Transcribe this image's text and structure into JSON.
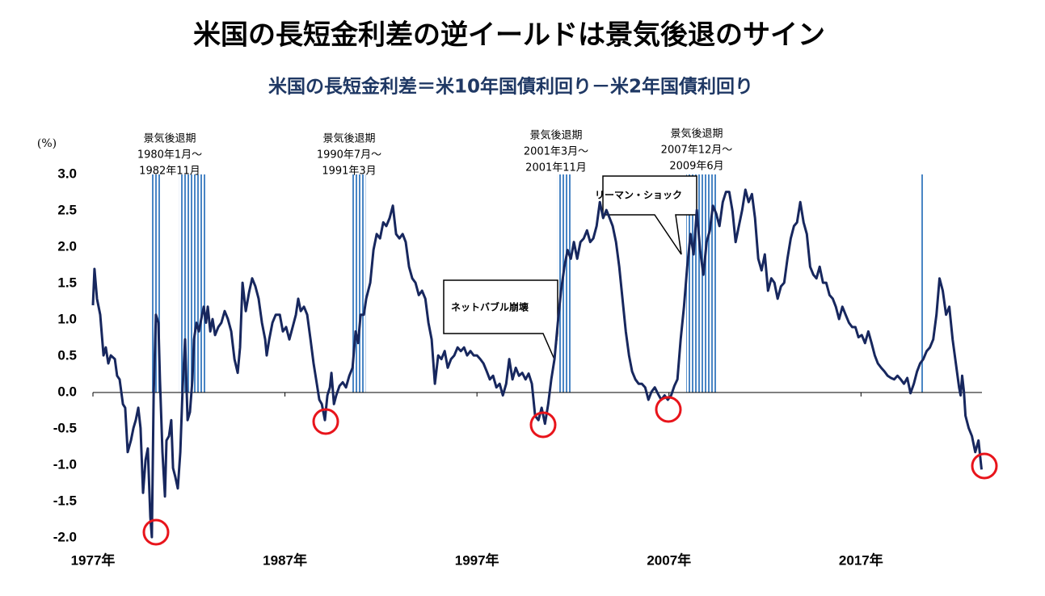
{
  "chart_data": {
    "type": "line",
    "title": "米国の長短金利差の逆イールドは景気後退のサイン",
    "subtitle": "米国の長短金利差＝米10年国債利回り－米2年国債利回り",
    "y_unit": "(%)",
    "xlim": [
      1977,
      2023.3
    ],
    "ylim": [
      -2.0,
      3.0
    ],
    "xticks": [
      {
        "value": 1977,
        "label": "1977年"
      },
      {
        "value": 1987,
        "label": "1987年"
      },
      {
        "value": 1997,
        "label": "1997年"
      },
      {
        "value": 2007,
        "label": "2007年"
      },
      {
        "value": 2017,
        "label": "2017年"
      }
    ],
    "yticks": [
      {
        "value": 3,
        "label": "3.0"
      },
      2.5,
      {
        "value": 2,
        "label": "2.0"
      },
      1.5,
      {
        "value": 1,
        "label": "1.0"
      },
      0.5,
      {
        "value": 0,
        "label": "0.0"
      },
      -0.5,
      {
        "value": -1,
        "label": "-1.0"
      },
      -1.5,
      {
        "value": -2,
        "label": "-2.0"
      }
    ],
    "series": [
      {
        "name": "米国の長短金利差",
        "color": "#17275e",
        "x": [
          1977.0,
          1977.08,
          1977.21,
          1977.38,
          1977.55,
          1977.67,
          1977.8,
          1977.93,
          1978.14,
          1978.26,
          1978.39,
          1978.56,
          1978.68,
          1978.81,
          1978.98,
          1979.11,
          1979.23,
          1979.36,
          1979.48,
          1979.61,
          1979.74,
          1979.86,
          1979.99,
          1980.07,
          1980.16,
          1980.28,
          1980.41,
          1980.49,
          1980.62,
          1980.75,
          1980.83,
          1980.96,
          1981.08,
          1981.17,
          1981.29,
          1981.42,
          1981.55,
          1981.67,
          1981.8,
          1981.93,
          1982.05,
          1982.18,
          1982.26,
          1982.39,
          1982.52,
          1982.64,
          1982.77,
          1982.89,
          1982.98,
          1983.11,
          1983.23,
          1983.36,
          1983.53,
          1983.69,
          1983.86,
          1984.03,
          1984.2,
          1984.37,
          1984.54,
          1984.66,
          1984.79,
          1984.96,
          1985.13,
          1985.29,
          1985.46,
          1985.63,
          1985.8,
          1985.97,
          1986.05,
          1986.18,
          1986.35,
          1986.52,
          1986.73,
          1986.89,
          1987.06,
          1987.23,
          1987.4,
          1987.57,
          1987.69,
          1987.82,
          1987.99,
          1988.16,
          1988.33,
          1988.49,
          1988.66,
          1988.79,
          1988.92,
          1989.08,
          1989.21,
          1989.34,
          1989.42,
          1989.55,
          1989.67,
          1989.84,
          1990.01,
          1990.18,
          1990.35,
          1990.52,
          1990.68,
          1990.81,
          1990.94,
          1991.11,
          1991.23,
          1991.44,
          1991.61,
          1991.78,
          1991.95,
          1992.12,
          1992.28,
          1992.45,
          1992.62,
          1992.79,
          1992.96,
          1993.13,
          1993.29,
          1993.46,
          1993.63,
          1993.8,
          1993.97,
          1994.14,
          1994.31,
          1994.47,
          1994.64,
          1994.81,
          1994.98,
          1995.15,
          1995.32,
          1995.48,
          1995.65,
          1995.82,
          1995.99,
          1996.16,
          1996.33,
          1996.49,
          1996.66,
          1996.83,
          1997.0,
          1997.17,
          1997.34,
          1997.51,
          1997.67,
          1997.84,
          1998.01,
          1998.18,
          1998.35,
          1998.52,
          1998.68,
          1998.85,
          1999.02,
          1999.19,
          1999.36,
          1999.53,
          1999.69,
          1999.86,
          2000.03,
          2000.2,
          2000.37,
          2000.54,
          2000.71,
          2000.87,
          2001.04,
          2001.21,
          2001.38,
          2001.55,
          2001.72,
          2001.89,
          2002.05,
          2002.22,
          2002.39,
          2002.56,
          2002.73,
          2002.9,
          2003.06,
          2003.23,
          2003.4,
          2003.57,
          2003.74,
          2003.91,
          2004.07,
          2004.24,
          2004.41,
          2004.58,
          2004.75,
          2004.92,
          2005.08,
          2005.25,
          2005.42,
          2005.59,
          2005.76,
          2005.93,
          2006.09,
          2006.26,
          2006.43,
          2006.6,
          2006.77,
          2006.94,
          2007.11,
          2007.28,
          2007.44,
          2007.61,
          2007.78,
          2007.95,
          2008.12,
          2008.28,
          2008.45,
          2008.62,
          2008.79,
          2008.96,
          2009.13,
          2009.29,
          2009.46,
          2009.63,
          2009.8,
          2009.97,
          2010.14,
          2010.31,
          2010.47,
          2010.64,
          2010.81,
          2010.98,
          2011.15,
          2011.32,
          2011.48,
          2011.65,
          2011.82,
          2011.99,
          2012.16,
          2012.33,
          2012.49,
          2012.66,
          2012.83,
          2013.0,
          2013.17,
          2013.34,
          2013.51,
          2013.67,
          2013.84,
          2014.01,
          2014.18,
          2014.35,
          2014.52,
          2014.68,
          2014.85,
          2015.02,
          2015.19,
          2015.36,
          2015.53,
          2015.69,
          2015.86,
          2016.03,
          2016.2,
          2016.37,
          2016.54,
          2016.71,
          2016.87,
          2017.04,
          2017.21,
          2017.38,
          2017.55,
          2017.72,
          2017.88,
          2018.05,
          2018.22,
          2018.39,
          2018.56,
          2018.73,
          2018.9,
          2019.07,
          2019.24,
          2019.41,
          2019.58,
          2019.75,
          2019.92,
          2020.08,
          2020.25,
          2020.42,
          2020.59,
          2020.76,
          2020.93,
          2021.09,
          2021.26,
          2021.43,
          2021.6,
          2021.77,
          2021.94,
          2022.11,
          2022.19,
          2022.27,
          2022.36,
          2022.44,
          2022.61,
          2022.78,
          2022.95,
          2023.12,
          2023.28
        ],
        "values": [
          1.2,
          1.7,
          1.29,
          1.07,
          0.51,
          0.62,
          0.4,
          0.51,
          0.46,
          0.23,
          0.18,
          -0.16,
          -0.21,
          -0.82,
          -0.66,
          -0.49,
          -0.38,
          -0.21,
          -0.49,
          -1.38,
          -0.93,
          -0.77,
          -1.71,
          -1.99,
          -0.04,
          1.07,
          0.96,
          0.18,
          -0.82,
          -1.43,
          -0.66,
          -0.6,
          -0.38,
          -1.04,
          -1.16,
          -1.32,
          -0.82,
          0.07,
          0.73,
          -0.38,
          -0.27,
          0.18,
          0.73,
          0.96,
          0.84,
          1.01,
          1.18,
          0.96,
          1.18,
          0.84,
          1.01,
          0.79,
          0.9,
          0.96,
          1.12,
          1.01,
          0.84,
          0.46,
          0.27,
          0.62,
          1.51,
          1.12,
          1.38,
          1.57,
          1.46,
          1.29,
          0.96,
          0.73,
          0.51,
          0.73,
          0.96,
          1.07,
          1.07,
          0.84,
          0.9,
          0.73,
          0.9,
          1.07,
          1.29,
          1.12,
          1.18,
          1.07,
          0.73,
          0.4,
          0.12,
          -0.1,
          -0.16,
          -0.38,
          -0.04,
          0.07,
          0.27,
          -0.16,
          -0.04,
          0.09,
          0.14,
          0.07,
          0.23,
          0.34,
          0.84,
          0.68,
          1.07,
          1.07,
          1.29,
          1.51,
          1.96,
          2.18,
          2.12,
          2.34,
          2.29,
          2.4,
          2.57,
          2.18,
          2.12,
          2.18,
          2.07,
          1.73,
          1.57,
          1.51,
          1.34,
          1.4,
          1.29,
          0.96,
          0.73,
          0.12,
          0.51,
          0.46,
          0.57,
          0.34,
          0.46,
          0.51,
          0.62,
          0.57,
          0.62,
          0.51,
          0.57,
          0.51,
          0.51,
          0.46,
          0.4,
          0.29,
          0.18,
          0.23,
          0.07,
          0.12,
          -0.04,
          0.12,
          0.46,
          0.18,
          0.34,
          0.23,
          0.27,
          0.18,
          0.26,
          0.12,
          -0.32,
          -0.38,
          -0.21,
          -0.43,
          -0.16,
          0.18,
          0.46,
          0.96,
          1.4,
          1.73,
          1.96,
          1.84,
          2.07,
          1.84,
          2.07,
          2.12,
          2.23,
          2.07,
          2.12,
          2.29,
          2.62,
          2.4,
          2.51,
          2.4,
          2.29,
          2.07,
          1.73,
          1.29,
          0.84,
          0.51,
          0.29,
          0.18,
          0.12,
          0.12,
          0.07,
          -0.1,
          0.01,
          0.07,
          -0.02,
          -0.1,
          -0.04,
          -0.1,
          -0.04,
          0.09,
          0.18,
          0.73,
          1.18,
          1.73,
          2.18,
          1.9,
          2.51,
          1.96,
          1.62,
          2.07,
          2.23,
          2.57,
          2.46,
          2.29,
          2.62,
          2.76,
          2.76,
          2.49,
          2.07,
          2.29,
          2.51,
          2.79,
          2.62,
          2.73,
          2.4,
          1.84,
          1.68,
          1.9,
          1.4,
          1.57,
          1.51,
          1.29,
          1.46,
          1.51,
          1.84,
          2.12,
          2.29,
          2.34,
          2.62,
          2.34,
          2.18,
          1.73,
          1.62,
          1.57,
          1.73,
          1.51,
          1.51,
          1.34,
          1.29,
          1.18,
          1.01,
          1.18,
          1.07,
          0.96,
          0.9,
          0.9,
          0.76,
          0.79,
          0.68,
          0.84,
          0.68,
          0.51,
          0.4,
          0.34,
          0.29,
          0.23,
          0.2,
          0.18,
          0.23,
          0.18,
          0.12,
          0.2,
          -0.01,
          0.12,
          0.29,
          0.4,
          0.46,
          0.57,
          0.62,
          0.73,
          1.07,
          1.57,
          1.4,
          1.07,
          1.18,
          0.73,
          0.4,
          0.07,
          -0.04,
          0.23,
          0.01,
          -0.32,
          -0.49,
          -0.6,
          -0.82,
          -0.66,
          -1.06
        ]
      }
    ],
    "recessions": [
      [
        1980.0,
        1980.5
      ],
      [
        1981.5,
        1982.9
      ],
      [
        1990.5,
        1991.2
      ],
      [
        2001.2,
        2001.9
      ],
      [
        2007.9,
        2009.5
      ],
      [
        2020.1,
        2020.3
      ]
    ],
    "recession_color": "#4a86c5",
    "annotations": [
      [
        "景気後退期",
        "1980年1月～",
        "1982年11月"
      ],
      [
        "景気後退期",
        "1990年7月～",
        "1991年3月"
      ],
      [
        "景気後退期",
        "2001年3月～",
        "2001年11月"
      ],
      [
        "景気後退期",
        "2007年12月～",
        "2009年6月"
      ]
    ],
    "callouts": [
      "ネットバブル崩壊",
      "リーマン・ショック"
    ]
  }
}
